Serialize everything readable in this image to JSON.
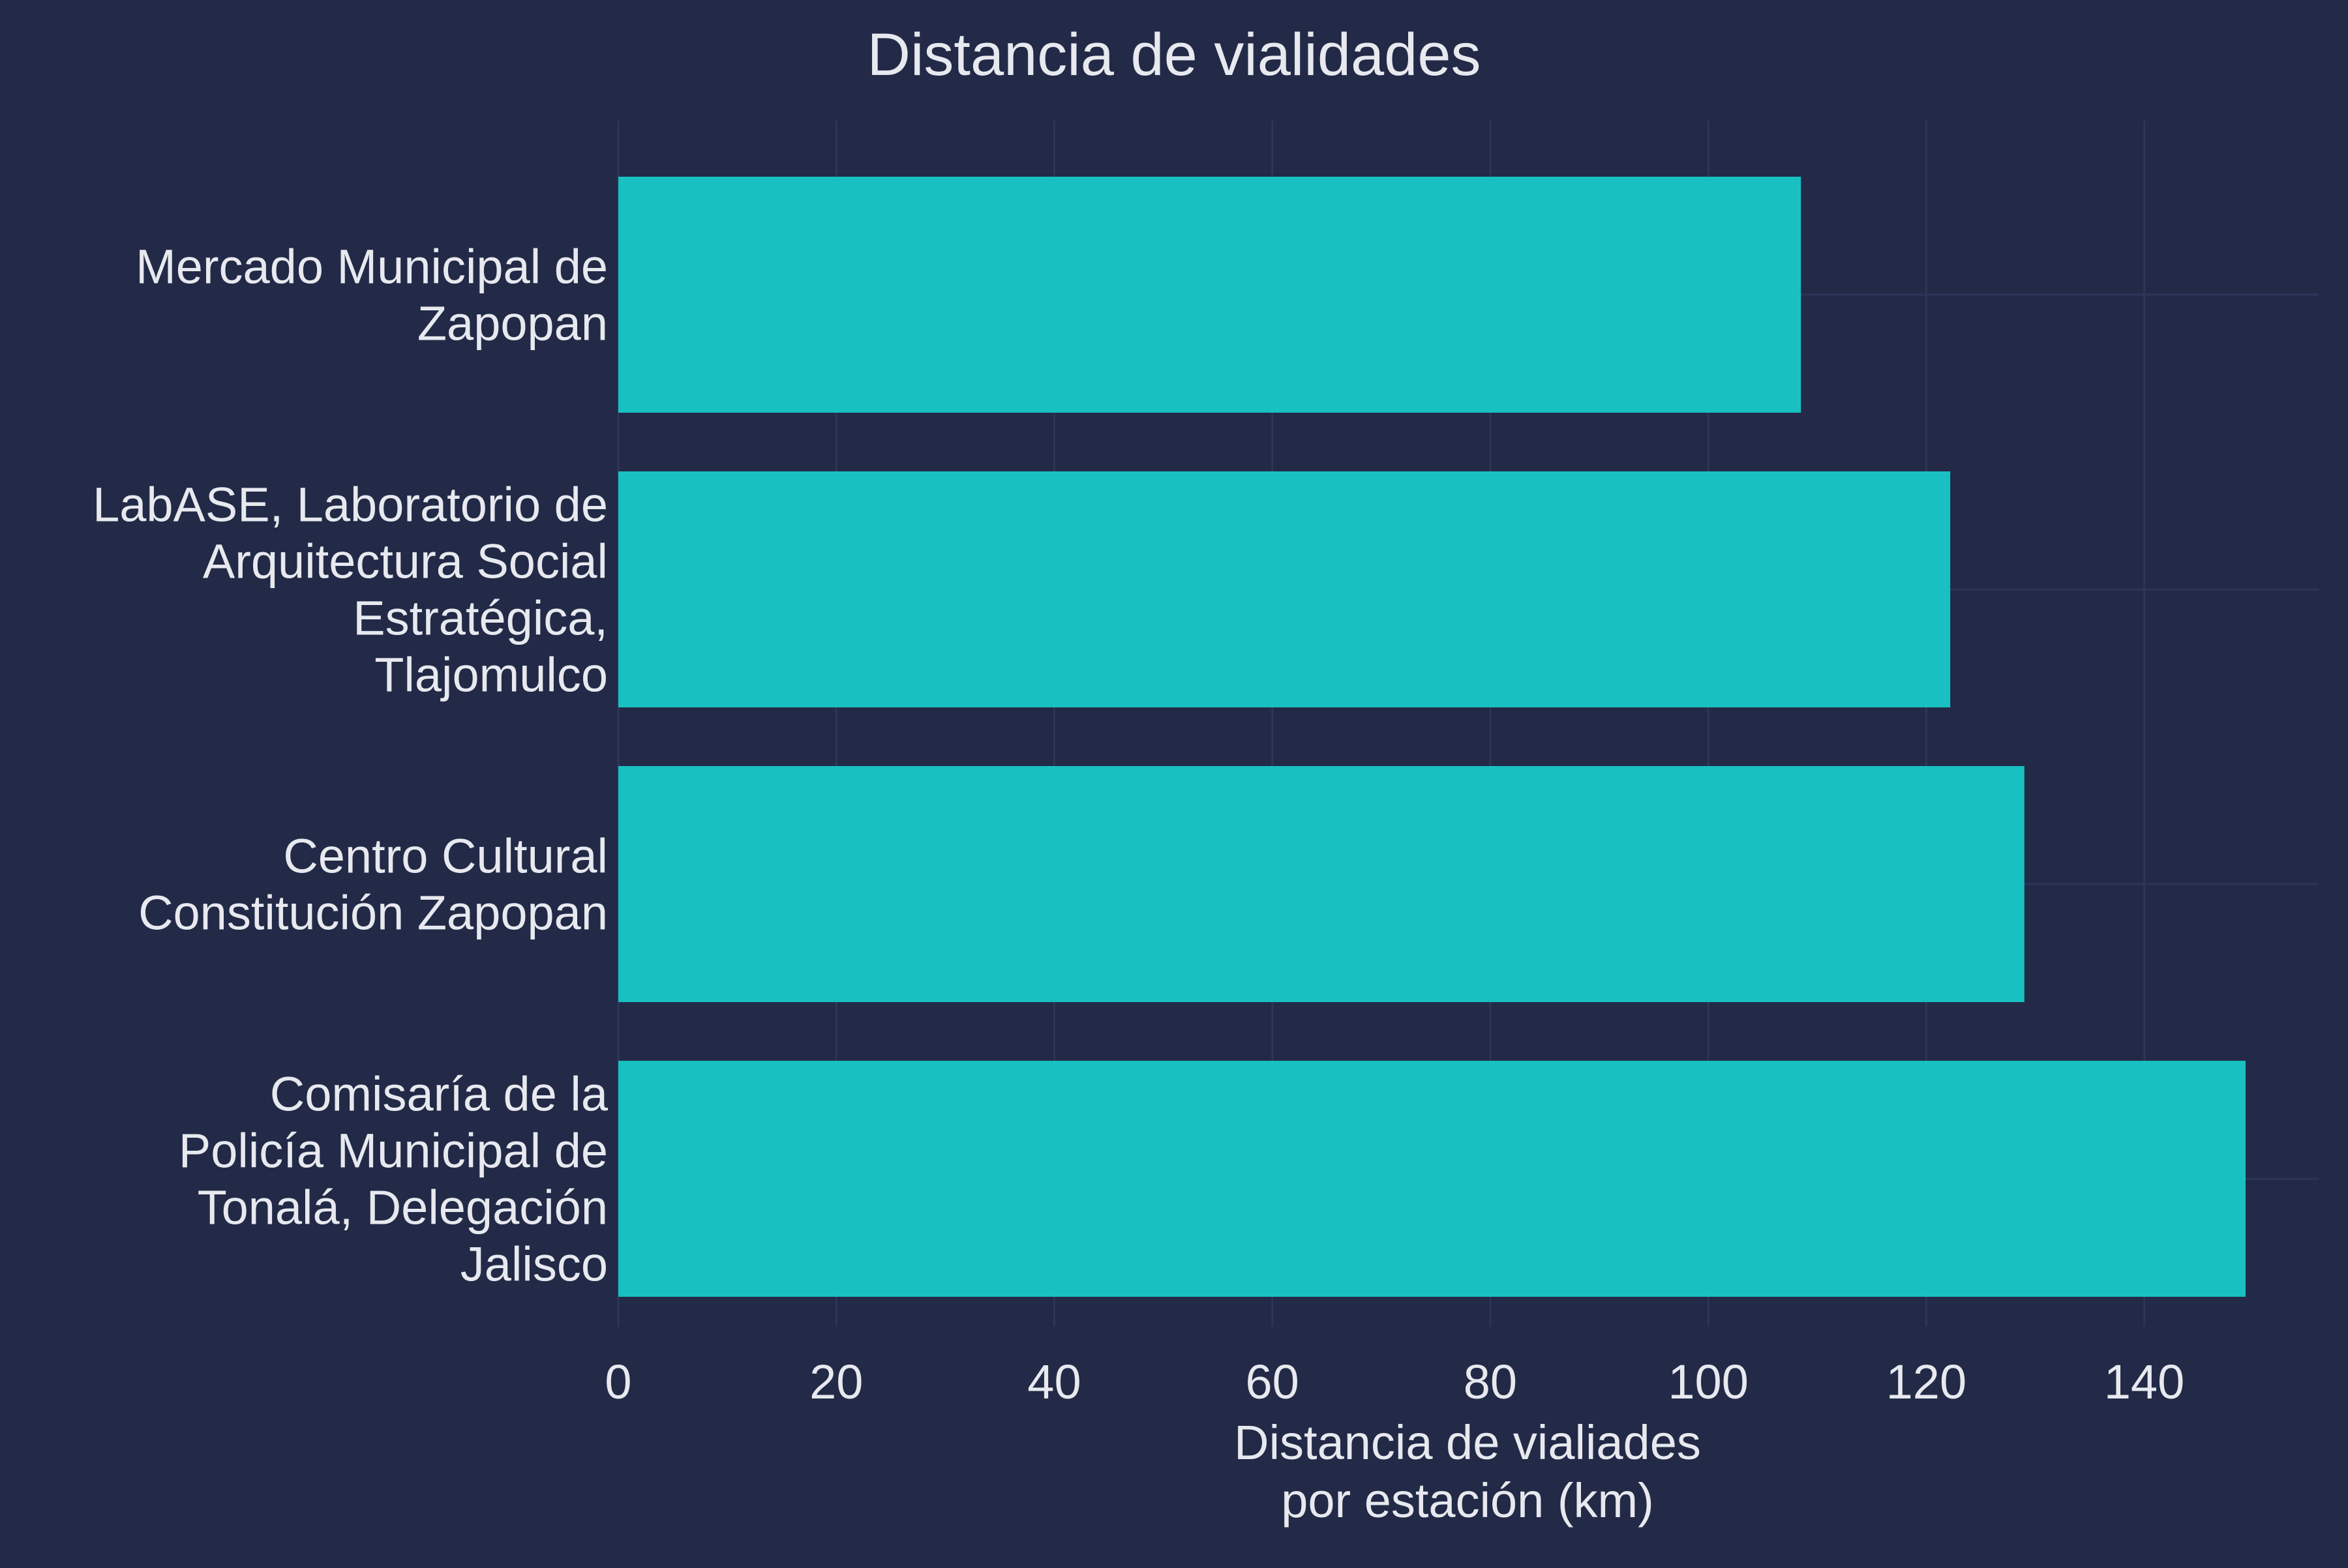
{
  "chart_data": {
    "type": "bar",
    "orientation": "horizontal",
    "title": "Distancia de vialidades",
    "xlabel": [
      "Distancia de vialiades",
      "por estación (km)"
    ],
    "ylabel": "",
    "categories": [
      [
        "Mercado Municipal de",
        "Zapopan"
      ],
      [
        "LabASE, Laboratorio de",
        "Arquitectura Social",
        "Estratégica,",
        "Tlajomulco"
      ],
      [
        "Centro Cultural",
        "Constitución Zapopan"
      ],
      [
        "Comisaría de la",
        "Policía Municipal de",
        "Tonalá, Delegación",
        "Jalisco"
      ]
    ],
    "values": [
      108.5,
      122.2,
      129,
      149.3
    ],
    "xlim": [
      0,
      156
    ],
    "xticks": [
      0,
      20,
      40,
      60,
      80,
      100,
      120,
      140
    ],
    "grid": true,
    "bar_color": "#19c0c2",
    "background_color": "#222a47",
    "text_color": "#e7e9ef",
    "grid_color": "#2d3659"
  }
}
